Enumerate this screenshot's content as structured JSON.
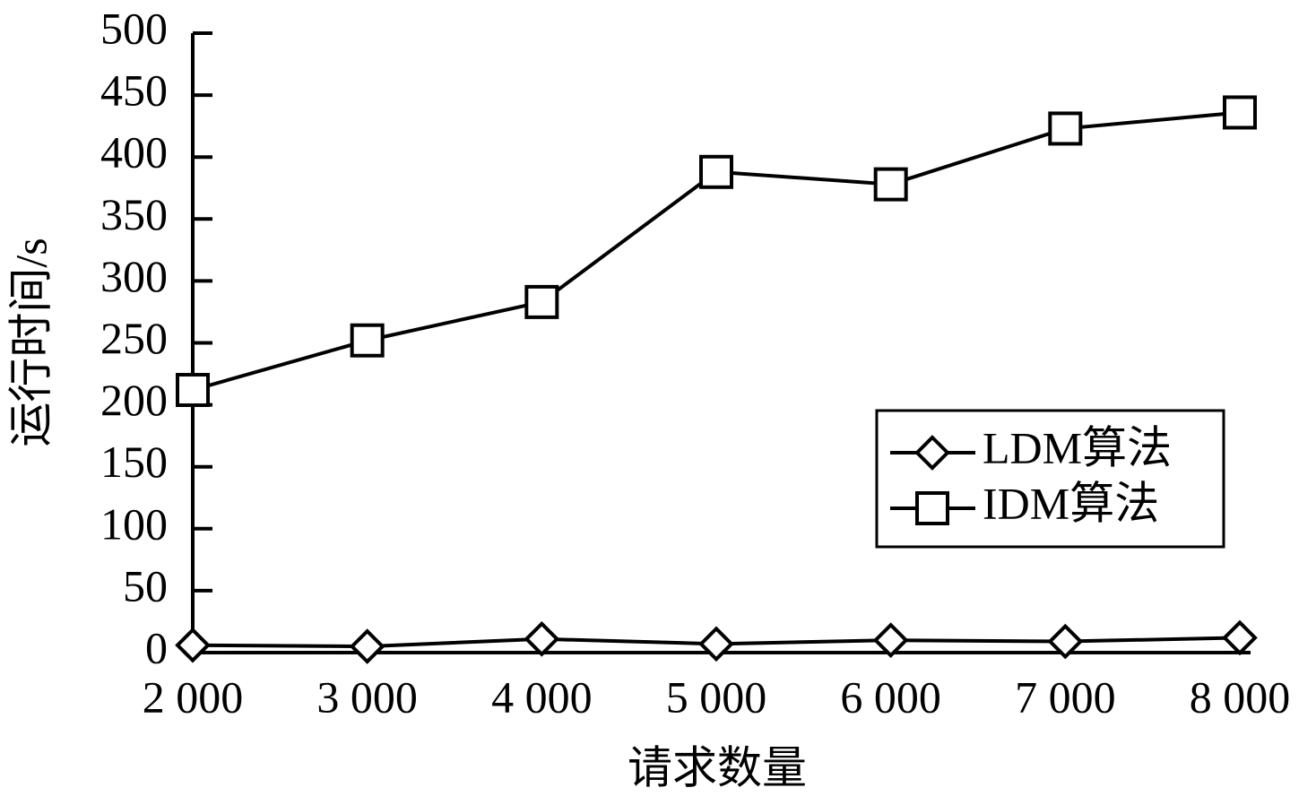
{
  "chart_data": {
    "type": "line",
    "x_label": "请求数量",
    "y_label": "运行时间/s",
    "x": [
      2000,
      3000,
      4000,
      5000,
      6000,
      7000,
      8000
    ],
    "series": [
      {
        "name": "LDM算法",
        "color": "#000000",
        "marker": "diamond",
        "values": [
          6,
          5,
          11,
          7,
          10,
          9,
          12
        ]
      },
      {
        "name": "IDM算法",
        "color": "#000000",
        "marker": "square",
        "values": [
          212,
          252,
          283,
          388,
          378,
          423,
          436
        ]
      }
    ],
    "xlim": [
      2000,
      8000
    ],
    "xticks": [
      {
        "value": 2000,
        "label": "2 000"
      },
      {
        "value": 3000,
        "label": "3 000"
      },
      {
        "value": 4000,
        "label": "4 000"
      },
      {
        "value": 5000,
        "label": "5 000"
      },
      {
        "value": 6000,
        "label": "6 000"
      },
      {
        "value": 7000,
        "label": "7 000"
      },
      {
        "value": 8000,
        "label": "8 000"
      }
    ],
    "ylim": [
      0,
      500
    ],
    "yticks": [
      0,
      50,
      100,
      150,
      200,
      250,
      300,
      350,
      400,
      450,
      500
    ],
    "grid": false,
    "legend": "right"
  }
}
